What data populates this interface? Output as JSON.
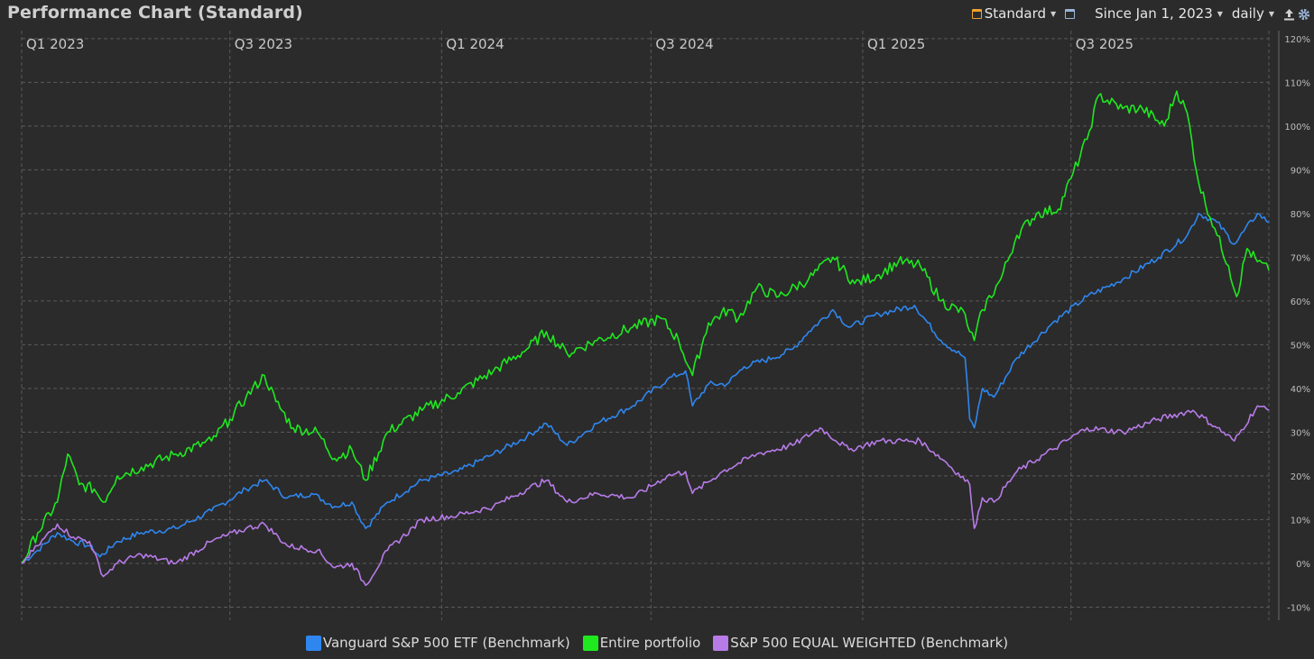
{
  "header": {
    "title": "Performance Chart (Standard)",
    "view_label": "Standard",
    "range_label": "Since Jan 1, 2023",
    "interval_label": "daily",
    "icons": [
      "standard-view-icon",
      "calendar-icon",
      "export-icon",
      "gear-icon"
    ]
  },
  "colors": {
    "background": "#2b2b2b",
    "grid": "#5a5a5a",
    "vanguard": "#2f86ef",
    "portfolio": "#1fe81f",
    "equal_weighted": "#b77be8"
  },
  "chart_data": {
    "type": "line",
    "title": "Performance Chart (Standard)",
    "x_start": "2023-01-01",
    "x_end": "2025-12-20",
    "xticks": [
      {
        "label": "Q1 2023",
        "date": "2023-01-01"
      },
      {
        "label": "Q3 2023",
        "date": "2023-07-01"
      },
      {
        "label": "Q1 2024",
        "date": "2024-01-01"
      },
      {
        "label": "Q3 2024",
        "date": "2024-07-01"
      },
      {
        "label": "Q1 2025",
        "date": "2025-01-01"
      },
      {
        "label": "Q3 2025",
        "date": "2025-07-01"
      }
    ],
    "ylim": [
      -13,
      121
    ],
    "yticks": [
      -10,
      0,
      10,
      20,
      30,
      40,
      50,
      60,
      70,
      80,
      90,
      100,
      110,
      120
    ],
    "ytick_labels": [
      "-10%",
      "0%",
      "10%",
      "20%",
      "30%",
      "40%",
      "50%",
      "60%",
      "70%",
      "80%",
      "90%",
      "100%",
      "110%",
      "120%"
    ],
    "grid": true,
    "legend_position": "bottom",
    "series": [
      {
        "name": "Vanguard S&P 500 ETF (Benchmark)",
        "color": "#2f86ef",
        "points": [
          [
            "2023-01-01",
            0
          ],
          [
            "2023-01-15",
            3
          ],
          [
            "2023-02-01",
            7
          ],
          [
            "2023-02-15",
            5
          ],
          [
            "2023-03-01",
            4
          ],
          [
            "2023-03-10",
            1.5
          ],
          [
            "2023-03-25",
            5
          ],
          [
            "2023-04-15",
            7
          ],
          [
            "2023-05-15",
            8
          ],
          [
            "2023-06-15",
            12
          ],
          [
            "2023-07-15",
            17
          ],
          [
            "2023-07-31",
            19
          ],
          [
            "2023-08-20",
            15
          ],
          [
            "2023-09-10",
            16
          ],
          [
            "2023-09-30",
            13
          ],
          [
            "2023-10-15",
            14
          ],
          [
            "2023-10-27",
            8
          ],
          [
            "2023-11-15",
            14
          ],
          [
            "2023-12-15",
            19
          ],
          [
            "2024-01-15",
            21
          ],
          [
            "2024-02-15",
            25
          ],
          [
            "2024-03-15",
            29
          ],
          [
            "2024-04-01",
            32
          ],
          [
            "2024-04-19",
            27
          ],
          [
            "2024-05-15",
            32
          ],
          [
            "2024-06-15",
            36
          ],
          [
            "2024-07-15",
            42
          ],
          [
            "2024-07-31",
            44
          ],
          [
            "2024-08-06",
            36
          ],
          [
            "2024-08-20",
            41
          ],
          [
            "2024-09-05",
            41
          ],
          [
            "2024-09-20",
            45
          ],
          [
            "2024-10-15",
            47
          ],
          [
            "2024-11-01",
            49
          ],
          [
            "2024-11-15",
            53
          ],
          [
            "2024-12-06",
            58
          ],
          [
            "2024-12-20",
            54
          ],
          [
            "2025-01-15",
            57
          ],
          [
            "2025-02-15",
            59
          ],
          [
            "2025-03-10",
            51
          ],
          [
            "2025-03-31",
            47
          ],
          [
            "2025-04-04",
            33
          ],
          [
            "2025-04-08",
            31
          ],
          [
            "2025-04-15",
            40
          ],
          [
            "2025-04-25",
            38
          ],
          [
            "2025-05-15",
            47
          ],
          [
            "2025-06-15",
            55
          ],
          [
            "2025-07-15",
            61
          ],
          [
            "2025-08-15",
            65
          ],
          [
            "2025-09-15",
            70
          ],
          [
            "2025-10-10",
            75
          ],
          [
            "2025-10-20",
            80
          ],
          [
            "2025-11-05",
            78
          ],
          [
            "2025-11-20",
            73
          ],
          [
            "2025-12-10",
            80
          ],
          [
            "2025-12-20",
            78
          ]
        ]
      },
      {
        "name": "Entire portfolio",
        "color": "#1fe81f",
        "points": [
          [
            "2023-01-01",
            0
          ],
          [
            "2023-01-15",
            7
          ],
          [
            "2023-02-01",
            14
          ],
          [
            "2023-02-10",
            25
          ],
          [
            "2023-02-20",
            18
          ],
          [
            "2023-03-05",
            17
          ],
          [
            "2023-03-13",
            14
          ],
          [
            "2023-03-25",
            20
          ],
          [
            "2023-04-15",
            22
          ],
          [
            "2023-05-15",
            25
          ],
          [
            "2023-06-15",
            28
          ],
          [
            "2023-07-01",
            33
          ],
          [
            "2023-07-15",
            38
          ],
          [
            "2023-07-31",
            43
          ],
          [
            "2023-08-10",
            37
          ],
          [
            "2023-08-25",
            31
          ],
          [
            "2023-09-15",
            30
          ],
          [
            "2023-09-30",
            24
          ],
          [
            "2023-10-15",
            26
          ],
          [
            "2023-10-27",
            19
          ],
          [
            "2023-11-15",
            30
          ],
          [
            "2023-12-15",
            35
          ],
          [
            "2024-01-15",
            39
          ],
          [
            "2024-02-15",
            44
          ],
          [
            "2024-03-15",
            49
          ],
          [
            "2024-04-01",
            53
          ],
          [
            "2024-04-19",
            48
          ],
          [
            "2024-05-15",
            51
          ],
          [
            "2024-06-15",
            54
          ],
          [
            "2024-07-10",
            56
          ],
          [
            "2024-07-25",
            51
          ],
          [
            "2024-08-06",
            43
          ],
          [
            "2024-08-20",
            55
          ],
          [
            "2024-09-06",
            58
          ],
          [
            "2024-09-15",
            56
          ],
          [
            "2024-10-01",
            63
          ],
          [
            "2024-10-20",
            61
          ],
          [
            "2024-11-15",
            65
          ],
          [
            "2024-12-06",
            70
          ],
          [
            "2024-12-25",
            64
          ],
          [
            "2025-01-15",
            66
          ],
          [
            "2025-02-01",
            69
          ],
          [
            "2025-02-20",
            68
          ],
          [
            "2025-03-10",
            60
          ],
          [
            "2025-03-31",
            57
          ],
          [
            "2025-04-04",
            53
          ],
          [
            "2025-04-08",
            51
          ],
          [
            "2025-04-15",
            58
          ],
          [
            "2025-05-01",
            65
          ],
          [
            "2025-05-15",
            75
          ],
          [
            "2025-06-01",
            80
          ],
          [
            "2025-06-20",
            81
          ],
          [
            "2025-07-01",
            88
          ],
          [
            "2025-07-15",
            97
          ],
          [
            "2025-07-25",
            107
          ],
          [
            "2025-08-15",
            104
          ],
          [
            "2025-09-01",
            104
          ],
          [
            "2025-09-20",
            100
          ],
          [
            "2025-10-01",
            108
          ],
          [
            "2025-10-10",
            103
          ],
          [
            "2025-10-20",
            87
          ],
          [
            "2025-11-05",
            75
          ],
          [
            "2025-11-15",
            68
          ],
          [
            "2025-11-22",
            61
          ],
          [
            "2025-12-01",
            72
          ],
          [
            "2025-12-10",
            69
          ],
          [
            "2025-12-20",
            67
          ]
        ]
      },
      {
        "name": "S&P 500 EQUAL WEIGHTED (Benchmark)",
        "color": "#b77be8",
        "points": [
          [
            "2023-01-01",
            0
          ],
          [
            "2023-01-15",
            4
          ],
          [
            "2023-02-01",
            9
          ],
          [
            "2023-02-15",
            6
          ],
          [
            "2023-03-01",
            5
          ],
          [
            "2023-03-13",
            -3
          ],
          [
            "2023-03-25",
            0
          ],
          [
            "2023-04-15",
            2
          ],
          [
            "2023-05-15",
            0
          ],
          [
            "2023-06-15",
            5
          ],
          [
            "2023-07-15",
            8
          ],
          [
            "2023-07-31",
            9
          ],
          [
            "2023-08-20",
            4
          ],
          [
            "2023-09-15",
            3
          ],
          [
            "2023-09-30",
            -1
          ],
          [
            "2023-10-15",
            0
          ],
          [
            "2023-10-27",
            -5
          ],
          [
            "2023-11-15",
            3
          ],
          [
            "2023-12-15",
            10
          ],
          [
            "2024-01-15",
            11
          ],
          [
            "2024-02-15",
            13
          ],
          [
            "2024-03-15",
            17
          ],
          [
            "2024-04-01",
            19
          ],
          [
            "2024-04-19",
            14
          ],
          [
            "2024-05-15",
            16
          ],
          [
            "2024-06-15",
            15
          ],
          [
            "2024-07-15",
            20
          ],
          [
            "2024-07-31",
            21
          ],
          [
            "2024-08-06",
            16
          ],
          [
            "2024-09-01",
            21
          ],
          [
            "2024-10-01",
            25
          ],
          [
            "2024-11-01",
            27
          ],
          [
            "2024-11-25",
            31
          ],
          [
            "2024-12-20",
            26
          ],
          [
            "2025-01-15",
            28
          ],
          [
            "2025-02-20",
            28
          ],
          [
            "2025-03-15",
            23
          ],
          [
            "2025-04-04",
            18
          ],
          [
            "2025-04-08",
            8
          ],
          [
            "2025-04-15",
            15
          ],
          [
            "2025-04-25",
            14
          ],
          [
            "2025-05-15",
            21
          ],
          [
            "2025-06-15",
            26
          ],
          [
            "2025-07-15",
            31
          ],
          [
            "2025-08-15",
            30
          ],
          [
            "2025-09-15",
            33
          ],
          [
            "2025-10-15",
            35
          ],
          [
            "2025-11-05",
            31
          ],
          [
            "2025-11-20",
            28
          ],
          [
            "2025-12-10",
            36
          ],
          [
            "2025-12-20",
            35
          ]
        ]
      }
    ]
  }
}
